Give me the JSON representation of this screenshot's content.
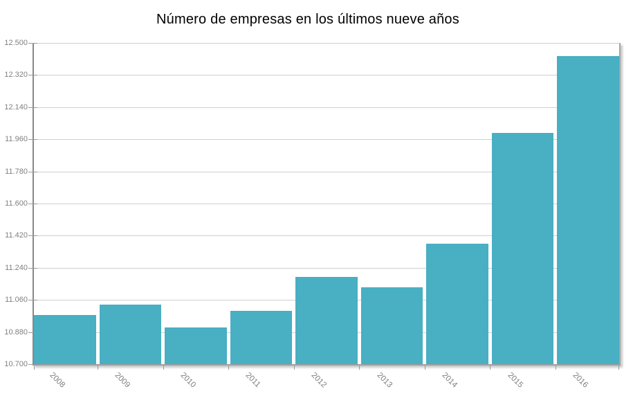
{
  "chart_data": {
    "type": "bar",
    "title": "Número de empresas en los últimos nueve años",
    "categories": [
      "2008",
      "2009",
      "2010",
      "2011",
      "2012",
      "2013",
      "2014",
      "2015",
      "2016"
    ],
    "values": [
      10975,
      11035,
      10905,
      11000,
      11190,
      11130,
      11375,
      11995,
      12425
    ],
    "xlabel": "",
    "ylabel": "",
    "ylim": [
      10700,
      12500
    ],
    "ytick_step": 180,
    "ytick_labels": [
      "12.500",
      "12.320",
      "12.140",
      "11.960",
      "11.780",
      "11.600",
      "11.420",
      "11.240",
      "11.060",
      "10.880",
      "10.700"
    ],
    "grid": true,
    "legend_position": "none",
    "number_format": "es-ES (dot thousands separator)",
    "colors": {
      "bar": "#49AFC2",
      "gridline": "#cfcfcf",
      "axis": "#888888",
      "tick": "#999999",
      "tick_label": "#7f7f7f",
      "title": "#000000",
      "background": "#ffffff"
    }
  }
}
